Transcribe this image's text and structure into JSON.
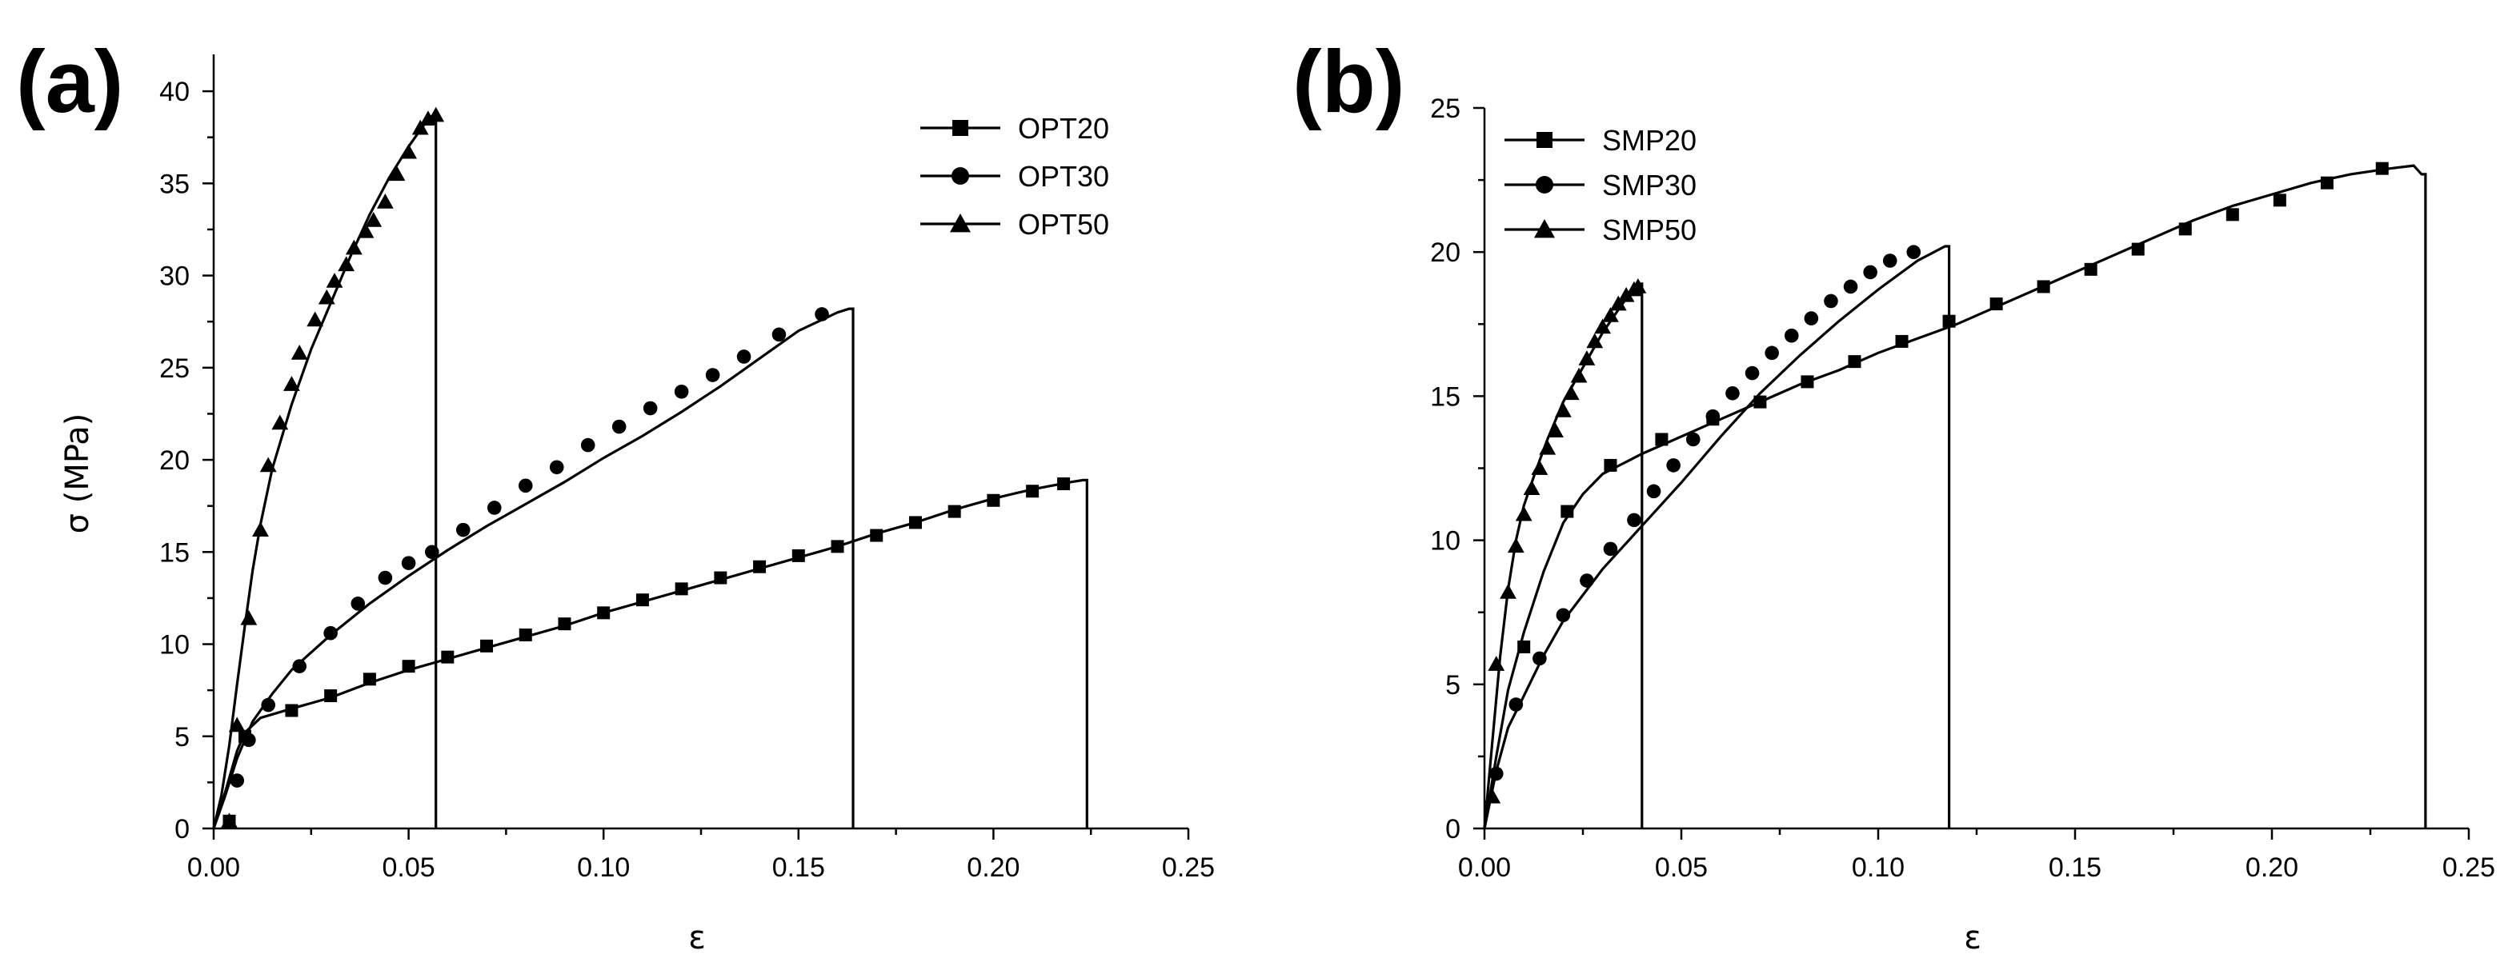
{
  "chart_data": [
    {
      "panel_label": "(a)",
      "type": "line",
      "xlabel": "ε",
      "ylabel": "σ (MPa)",
      "xlim": [
        0,
        0.25
      ],
      "ylim": [
        0,
        42
      ],
      "xticks": [
        "0.00",
        "0.05",
        "0.10",
        "0.15",
        "0.20",
        "0.25"
      ],
      "yticks": [
        "0",
        "5",
        "10",
        "15",
        "20",
        "25",
        "30",
        "35",
        "40"
      ],
      "legend_position": "top-right",
      "series": [
        {
          "name": "OPT20",
          "marker": "square",
          "fracture_strain": 0.224,
          "points": [
            [
              0,
              0
            ],
            [
              0.003,
              2.0
            ],
            [
              0.006,
              4.2
            ],
            [
              0.008,
              5.2
            ],
            [
              0.012,
              6.0
            ],
            [
              0.02,
              6.5
            ],
            [
              0.03,
              7.1
            ],
            [
              0.04,
              7.9
            ],
            [
              0.05,
              8.6
            ],
            [
              0.06,
              9.2
            ],
            [
              0.07,
              9.8
            ],
            [
              0.08,
              10.4
            ],
            [
              0.09,
              11.0
            ],
            [
              0.1,
              11.7
            ],
            [
              0.11,
              12.3
            ],
            [
              0.12,
              12.9
            ],
            [
              0.13,
              13.5
            ],
            [
              0.14,
              14.1
            ],
            [
              0.15,
              14.7
            ],
            [
              0.16,
              15.3
            ],
            [
              0.17,
              16.0
            ],
            [
              0.18,
              16.6
            ],
            [
              0.19,
              17.3
            ],
            [
              0.2,
              17.9
            ],
            [
              0.21,
              18.4
            ],
            [
              0.22,
              18.8
            ],
            [
              0.223,
              18.9
            ]
          ],
          "marker_points": [
            [
              0.004,
              0.4
            ],
            [
              0.008,
              5.0
            ],
            [
              0.02,
              6.4
            ],
            [
              0.03,
              7.2
            ],
            [
              0.04,
              8.1
            ],
            [
              0.05,
              8.8
            ],
            [
              0.06,
              9.3
            ],
            [
              0.07,
              9.9
            ],
            [
              0.08,
              10.5
            ],
            [
              0.09,
              11.1
            ],
            [
              0.1,
              11.7
            ],
            [
              0.11,
              12.4
            ],
            [
              0.12,
              13.0
            ],
            [
              0.13,
              13.6
            ],
            [
              0.14,
              14.2
            ],
            [
              0.15,
              14.8
            ],
            [
              0.16,
              15.3
            ],
            [
              0.17,
              15.9
            ],
            [
              0.18,
              16.6
            ],
            [
              0.19,
              17.2
            ],
            [
              0.2,
              17.8
            ],
            [
              0.21,
              18.3
            ],
            [
              0.218,
              18.7
            ]
          ]
        },
        {
          "name": "OPT30",
          "marker": "circle",
          "fracture_strain": 0.164,
          "points": [
            [
              0,
              0
            ],
            [
              0.003,
              1.8
            ],
            [
              0.006,
              3.8
            ],
            [
              0.01,
              5.8
            ],
            [
              0.015,
              7.3
            ],
            [
              0.02,
              8.6
            ],
            [
              0.03,
              10.5
            ],
            [
              0.04,
              12.2
            ],
            [
              0.05,
              13.7
            ],
            [
              0.06,
              15.1
            ],
            [
              0.07,
              16.4
            ],
            [
              0.08,
              17.6
            ],
            [
              0.09,
              18.8
            ],
            [
              0.1,
              20.1
            ],
            [
              0.11,
              21.3
            ],
            [
              0.12,
              22.6
            ],
            [
              0.13,
              24.0
            ],
            [
              0.14,
              25.5
            ],
            [
              0.15,
              27.0
            ],
            [
              0.16,
              28.0
            ],
            [
              0.163,
              28.2
            ]
          ],
          "marker_points": [
            [
              0.006,
              2.6
            ],
            [
              0.009,
              4.8
            ],
            [
              0.014,
              6.7
            ],
            [
              0.022,
              8.8
            ],
            [
              0.03,
              10.6
            ],
            [
              0.037,
              12.2
            ],
            [
              0.044,
              13.6
            ],
            [
              0.05,
              14.4
            ],
            [
              0.056,
              15.0
            ],
            [
              0.064,
              16.2
            ],
            [
              0.072,
              17.4
            ],
            [
              0.08,
              18.6
            ],
            [
              0.088,
              19.6
            ],
            [
              0.096,
              20.8
            ],
            [
              0.104,
              21.8
            ],
            [
              0.112,
              22.8
            ],
            [
              0.12,
              23.7
            ],
            [
              0.128,
              24.6
            ],
            [
              0.136,
              25.6
            ],
            [
              0.145,
              26.8
            ],
            [
              0.156,
              27.9
            ]
          ]
        },
        {
          "name": "OPT50",
          "marker": "triangle",
          "fracture_strain": 0.057,
          "points": [
            [
              0,
              0
            ],
            [
              0.002,
              1.8
            ],
            [
              0.004,
              4.5
            ],
            [
              0.006,
              7.8
            ],
            [
              0.008,
              11.0
            ],
            [
              0.01,
              14.0
            ],
            [
              0.012,
              16.5
            ],
            [
              0.015,
              19.5
            ],
            [
              0.02,
              23.0
            ],
            [
              0.025,
              26.0
            ],
            [
              0.03,
              28.5
            ],
            [
              0.035,
              31.0
            ],
            [
              0.04,
              33.3
            ],
            [
              0.045,
              35.3
            ],
            [
              0.05,
              37.0
            ],
            [
              0.055,
              38.5
            ],
            [
              0.057,
              38.8
            ]
          ],
          "marker_points": [
            [
              0.004,
              0.4
            ],
            [
              0.006,
              5.6
            ],
            [
              0.009,
              11.4
            ],
            [
              0.012,
              16.2
            ],
            [
              0.014,
              19.7
            ],
            [
              0.017,
              22.0
            ],
            [
              0.02,
              24.1
            ],
            [
              0.022,
              25.8
            ],
            [
              0.026,
              27.6
            ],
            [
              0.029,
              28.8
            ],
            [
              0.031,
              29.7
            ],
            [
              0.034,
              30.6
            ],
            [
              0.036,
              31.5
            ],
            [
              0.039,
              32.4
            ],
            [
              0.041,
              33.0
            ],
            [
              0.044,
              34.0
            ],
            [
              0.047,
              35.5
            ],
            [
              0.05,
              36.7
            ],
            [
              0.053,
              38.0
            ],
            [
              0.055,
              38.5
            ],
            [
              0.057,
              38.7
            ]
          ]
        }
      ]
    },
    {
      "panel_label": "(b)",
      "type": "line",
      "xlabel": "ε",
      "ylabel": "",
      "xlim": [
        0,
        0.25
      ],
      "ylim": [
        0,
        25
      ],
      "xticks": [
        "0.00",
        "0.05",
        "0.10",
        "0.15",
        "0.20",
        "0.25"
      ],
      "yticks": [
        "0",
        "5",
        "10",
        "15",
        "20",
        "25"
      ],
      "legend_position": "top-left",
      "series": [
        {
          "name": "SMP20",
          "marker": "square",
          "fracture_strain": 0.239,
          "points": [
            [
              0,
              0
            ],
            [
              0.003,
              2.5
            ],
            [
              0.006,
              4.8
            ],
            [
              0.01,
              6.8
            ],
            [
              0.015,
              8.9
            ],
            [
              0.02,
              10.6
            ],
            [
              0.025,
              11.6
            ],
            [
              0.03,
              12.3
            ],
            [
              0.04,
              13.0
            ],
            [
              0.05,
              13.6
            ],
            [
              0.06,
              14.2
            ],
            [
              0.07,
              14.8
            ],
            [
              0.08,
              15.4
            ],
            [
              0.09,
              15.9
            ],
            [
              0.1,
              16.5
            ],
            [
              0.11,
              17.0
            ],
            [
              0.12,
              17.5
            ],
            [
              0.13,
              18.1
            ],
            [
              0.14,
              18.7
            ],
            [
              0.15,
              19.3
            ],
            [
              0.16,
              19.9
            ],
            [
              0.17,
              20.5
            ],
            [
              0.18,
              21.1
            ],
            [
              0.19,
              21.6
            ],
            [
              0.2,
              22.0
            ],
            [
              0.21,
              22.4
            ],
            [
              0.22,
              22.7
            ],
            [
              0.23,
              22.9
            ],
            [
              0.236,
              23.0
            ],
            [
              0.238,
              22.7
            ]
          ],
          "marker_points": [
            [
              0.01,
              6.3
            ],
            [
              0.021,
              11.0
            ],
            [
              0.032,
              12.6
            ],
            [
              0.045,
              13.5
            ],
            [
              0.058,
              14.2
            ],
            [
              0.07,
              14.8
            ],
            [
              0.082,
              15.5
            ],
            [
              0.094,
              16.2
            ],
            [
              0.106,
              16.9
            ],
            [
              0.118,
              17.6
            ],
            [
              0.13,
              18.2
            ],
            [
              0.142,
              18.8
            ],
            [
              0.154,
              19.4
            ],
            [
              0.166,
              20.1
            ],
            [
              0.178,
              20.8
            ],
            [
              0.19,
              21.3
            ],
            [
              0.202,
              21.8
            ],
            [
              0.214,
              22.4
            ],
            [
              0.228,
              22.9
            ]
          ]
        },
        {
          "name": "SMP30",
          "marker": "circle",
          "fracture_strain": 0.118,
          "points": [
            [
              0,
              0
            ],
            [
              0.003,
              2.0
            ],
            [
              0.006,
              3.5
            ],
            [
              0.01,
              4.6
            ],
            [
              0.015,
              6.0
            ],
            [
              0.02,
              7.2
            ],
            [
              0.03,
              9.0
            ],
            [
              0.04,
              10.5
            ],
            [
              0.05,
              12.0
            ],
            [
              0.06,
              13.6
            ],
            [
              0.07,
              15.1
            ],
            [
              0.08,
              16.4
            ],
            [
              0.09,
              17.6
            ],
            [
              0.1,
              18.7
            ],
            [
              0.11,
              19.7
            ],
            [
              0.117,
              20.2
            ]
          ],
          "marker_points": [
            [
              0.003,
              1.9
            ],
            [
              0.008,
              4.3
            ],
            [
              0.014,
              5.9
            ],
            [
              0.02,
              7.4
            ],
            [
              0.026,
              8.6
            ],
            [
              0.032,
              9.7
            ],
            [
              0.038,
              10.7
            ],
            [
              0.043,
              11.7
            ],
            [
              0.048,
              12.6
            ],
            [
              0.053,
              13.5
            ],
            [
              0.058,
              14.3
            ],
            [
              0.063,
              15.1
            ],
            [
              0.068,
              15.8
            ],
            [
              0.073,
              16.5
            ],
            [
              0.078,
              17.1
            ],
            [
              0.083,
              17.7
            ],
            [
              0.088,
              18.3
            ],
            [
              0.093,
              18.8
            ],
            [
              0.098,
              19.3
            ],
            [
              0.103,
              19.7
            ],
            [
              0.109,
              20.0
            ]
          ]
        },
        {
          "name": "SMP50",
          "marker": "triangle",
          "fracture_strain": 0.04,
          "points": [
            [
              0,
              0
            ],
            [
              0.002,
              3.0
            ],
            [
              0.004,
              6.0
            ],
            [
              0.006,
              8.3
            ],
            [
              0.008,
              10.0
            ],
            [
              0.01,
              11.2
            ],
            [
              0.013,
              12.4
            ],
            [
              0.016,
              13.5
            ],
            [
              0.02,
              14.8
            ],
            [
              0.025,
              16.0
            ],
            [
              0.03,
              17.2
            ],
            [
              0.035,
              18.2
            ],
            [
              0.039,
              18.9
            ]
          ],
          "marker_points": [
            [
              0.002,
              1.1
            ],
            [
              0.003,
              5.7
            ],
            [
              0.006,
              8.2
            ],
            [
              0.008,
              9.8
            ],
            [
              0.01,
              10.9
            ],
            [
              0.012,
              11.8
            ],
            [
              0.014,
              12.5
            ],
            [
              0.016,
              13.2
            ],
            [
              0.018,
              13.8
            ],
            [
              0.02,
              14.5
            ],
            [
              0.022,
              15.1
            ],
            [
              0.024,
              15.7
            ],
            [
              0.026,
              16.3
            ],
            [
              0.028,
              16.9
            ],
            [
              0.03,
              17.4
            ],
            [
              0.032,
              17.8
            ],
            [
              0.034,
              18.2
            ],
            [
              0.036,
              18.5
            ],
            [
              0.038,
              18.7
            ],
            [
              0.039,
              18.8
            ]
          ]
        }
      ]
    }
  ]
}
